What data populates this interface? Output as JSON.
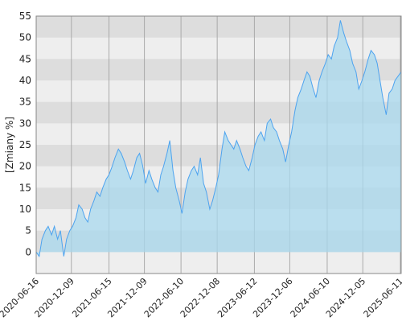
{
  "chart_data": {
    "type": "area",
    "y_label": "[Zmiany %]",
    "x": [
      "2020-06-16",
      "2020-07-01",
      "2020-07-15",
      "2020-08-01",
      "2020-08-15",
      "2020-09-01",
      "2020-09-15",
      "2020-10-01",
      "2020-10-15",
      "2020-11-01",
      "2020-11-15",
      "2020-12-01",
      "2020-12-15",
      "2021-01-01",
      "2021-01-15",
      "2021-02-01",
      "2021-02-15",
      "2021-03-01",
      "2021-03-15",
      "2021-04-01",
      "2021-04-15",
      "2021-05-01",
      "2021-05-15",
      "2021-06-01",
      "2021-06-15",
      "2021-07-01",
      "2021-07-15",
      "2021-08-01",
      "2021-08-15",
      "2021-09-01",
      "2021-09-15",
      "2021-10-01",
      "2021-10-15",
      "2021-11-01",
      "2021-11-15",
      "2021-12-01",
      "2021-12-15",
      "2022-01-01",
      "2022-01-15",
      "2022-02-01",
      "2022-02-15",
      "2022-03-01",
      "2022-03-15",
      "2022-04-01",
      "2022-04-15",
      "2022-05-01",
      "2022-05-15",
      "2022-06-01",
      "2022-06-15",
      "2022-07-01",
      "2022-07-15",
      "2022-08-01",
      "2022-08-15",
      "2022-09-01",
      "2022-09-15",
      "2022-10-01",
      "2022-10-15",
      "2022-11-01",
      "2022-11-15",
      "2022-12-01",
      "2022-12-15",
      "2023-01-01",
      "2023-01-15",
      "2023-02-01",
      "2023-02-15",
      "2023-03-01",
      "2023-03-15",
      "2023-04-01",
      "2023-04-15",
      "2023-05-01",
      "2023-05-15",
      "2023-06-01",
      "2023-06-15",
      "2023-07-01",
      "2023-07-15",
      "2023-08-01",
      "2023-08-15",
      "2023-09-01",
      "2023-09-15",
      "2023-10-01",
      "2023-10-15",
      "2023-11-01",
      "2023-11-15",
      "2023-12-01",
      "2023-12-15",
      "2024-01-01",
      "2024-01-15",
      "2024-02-01",
      "2024-02-15",
      "2024-03-01",
      "2024-03-15",
      "2024-04-01",
      "2024-04-15",
      "2024-05-01",
      "2024-05-15",
      "2024-06-01",
      "2024-06-15",
      "2024-07-01",
      "2024-07-15",
      "2024-08-01",
      "2024-08-15",
      "2024-09-01",
      "2024-09-15",
      "2024-10-01",
      "2024-10-15",
      "2024-11-01",
      "2024-11-15",
      "2024-12-01",
      "2024-12-15",
      "2025-01-01",
      "2025-01-15",
      "2025-02-01",
      "2025-02-15",
      "2025-03-01",
      "2025-03-15",
      "2025-04-01",
      "2025-04-15",
      "2025-05-01",
      "2025-05-15",
      "2025-06-15"
    ],
    "values": [
      0,
      -1,
      3,
      5,
      6,
      4,
      6,
      3,
      5,
      -1,
      3,
      5,
      6,
      8,
      11,
      10,
      8,
      7,
      10,
      12,
      14,
      13,
      15,
      17,
      18,
      20,
      22,
      24,
      23,
      21,
      19,
      17,
      19,
      22,
      23,
      20,
      16,
      19,
      17,
      15,
      14,
      18,
      20,
      23,
      26,
      19,
      15,
      12,
      9,
      14,
      17,
      19,
      20,
      18,
      22,
      16,
      14,
      10,
      12,
      15,
      18,
      24,
      28,
      26,
      25,
      24,
      26,
      24,
      22,
      20,
      19,
      22,
      25,
      27,
      28,
      26,
      30,
      31,
      29,
      28,
      26,
      24,
      21,
      25,
      28,
      33,
      36,
      38,
      40,
      42,
      41,
      38,
      36,
      40,
      42,
      44,
      46,
      45,
      48,
      50,
      54,
      51,
      49,
      47,
      44,
      42,
      38,
      40,
      42,
      45,
      47,
      46,
      44,
      40,
      36,
      32,
      37,
      38,
      40,
      42
    ],
    "color": "#4da3ef",
    "fill": "#a8d8ee",
    "xlim": [
      "2020-06-16",
      "2025-06-15"
    ],
    "xticks": [
      "2020-06-16",
      "2020-12-09",
      "2021-06-15",
      "2021-12-09",
      "2022-06-10",
      "2022-12-08",
      "2023-06-12",
      "2023-12-06",
      "2024-06-10",
      "2024-12-05",
      "2025-06-11"
    ],
    "ylim": [
      -5,
      55
    ],
    "yticks": [
      0,
      5,
      10,
      15,
      20,
      25,
      30,
      35,
      40,
      45,
      50,
      55
    ],
    "grid": true
  }
}
